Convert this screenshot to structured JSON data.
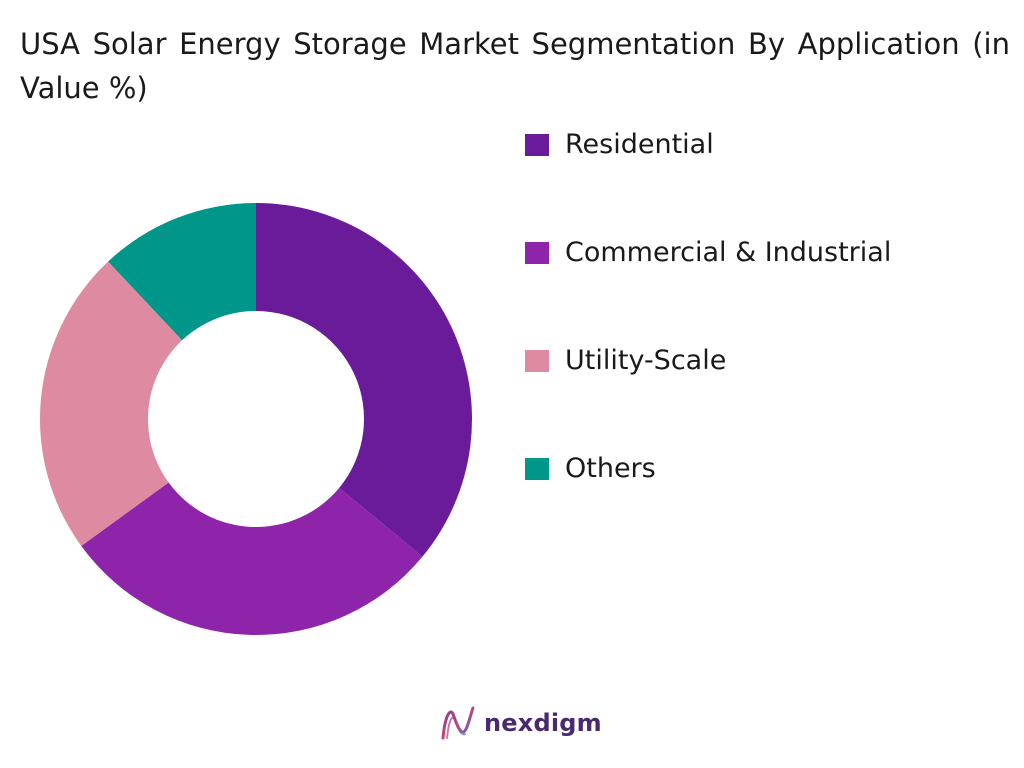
{
  "chart_data": {
    "type": "pie",
    "title": "USA Solar Energy Storage Market Segmentation By Application (in Value %)",
    "categories": [
      "Residential",
      "Commercial & Industrial",
      "Utility-Scale",
      "Others"
    ],
    "values": [
      36,
      29,
      23,
      12
    ],
    "colors": [
      "#6a1b9a",
      "#8e24aa",
      "#de8aa0",
      "#00968a"
    ],
    "donut": true,
    "legend_position": "right"
  },
  "legend": {
    "items": [
      {
        "label": "Residential",
        "color": "#6a1b9a"
      },
      {
        "label": "Commercial & Industrial",
        "color": "#8e24aa"
      },
      {
        "label": "Utility-Scale",
        "color": "#de8aa0"
      },
      {
        "label": "Others",
        "color": "#00968a"
      }
    ]
  },
  "brand": {
    "name": "nexdigm",
    "logo_icon": "nexdigm-wave-icon",
    "color": "#4a2a6e"
  }
}
